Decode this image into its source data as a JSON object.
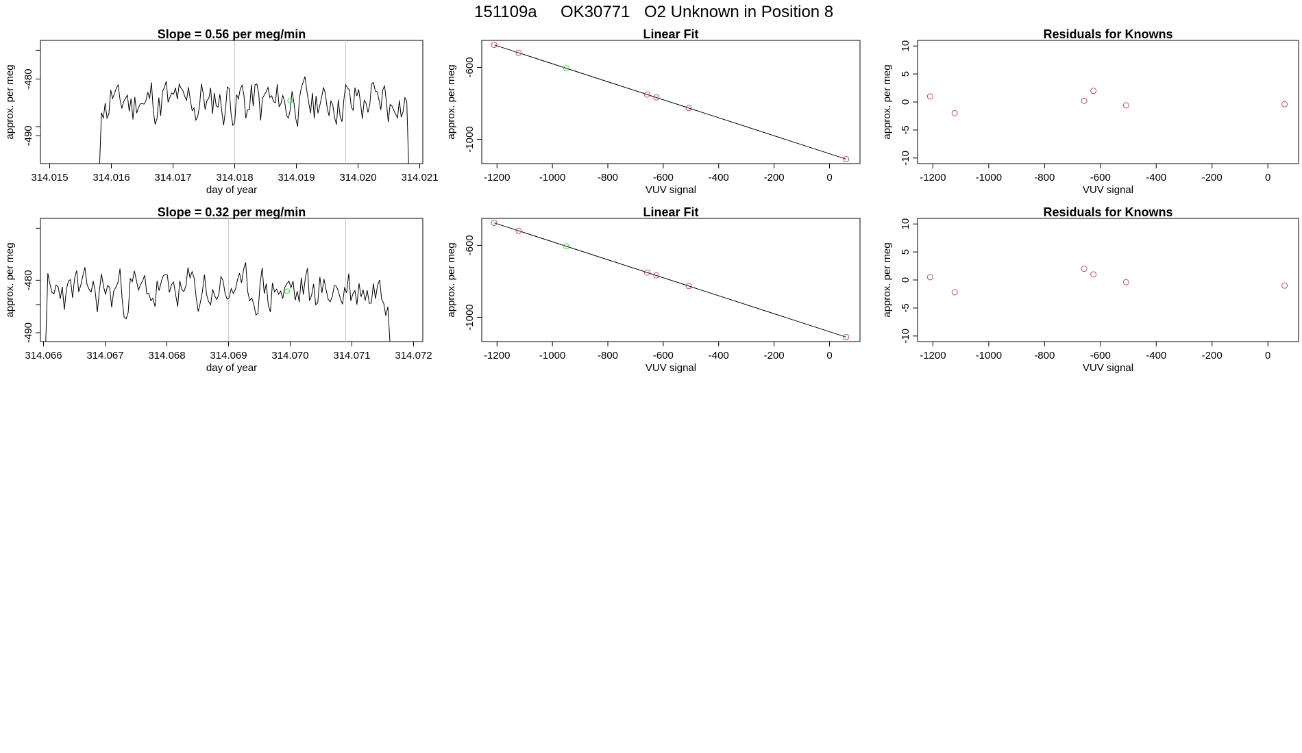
{
  "suptitle": {
    "id": "151109a",
    "sample": "OK30771",
    "desc": "O2 Unknown in Position  8"
  },
  "colors": {
    "trace": "#000000",
    "known": "#c0504d",
    "unknown": "#3cd63c",
    "grid": "#c8c8c8"
  },
  "chart_data": [
    {
      "type": "line",
      "title": "Slope =  0.56  per meg/min",
      "xlabel": "day of year",
      "ylabel": "approx. per meg",
      "xlim": [
        314.01485,
        314.02105
      ],
      "ylim": [
        -494.9,
        -473.2
      ],
      "xticks": [
        "314.015",
        "314.016",
        "314.017",
        "314.018",
        "314.019",
        "314.020",
        "314.021"
      ],
      "yticks": [
        "-480",
        "-490"
      ],
      "ytick_values": [
        -480,
        -490
      ],
      "vlines": [
        314.018,
        314.0198
      ],
      "unknown_marker": {
        "x": 314.0189,
        "y": -483.8
      },
      "trace": {
        "x_start": 314.01575,
        "x_end": 314.02085,
        "seed": 11,
        "y_mean": -484.0,
        "y_amp": 5.2
      }
    },
    {
      "type": "scatter",
      "title": "Linear Fit",
      "xlabel": "VUV signal",
      "ylabel": "approx. per meg",
      "xlim": [
        -1255,
        110
      ],
      "ylim": [
        -1135,
        -450
      ],
      "xticks": [
        "-1200",
        "-1000",
        "-800",
        "-600",
        "-400",
        "-200",
        "0"
      ],
      "ytick_labels": [
        "-600",
        "-1000"
      ],
      "ytick_values": [
        -600,
        -1000
      ],
      "fit_line": {
        "x": [
          -1210,
          60
        ],
        "y": [
          -475,
          -1110
        ]
      },
      "knowns": {
        "x": [
          -1210,
          -1122,
          -658,
          -625,
          -508,
          60
        ],
        "y": [
          -475,
          -519,
          -751,
          -767,
          -826,
          -1110
        ]
      },
      "unknown": {
        "x": -950,
        "y": -605
      }
    },
    {
      "type": "scatter",
      "title": "Residuals for Knowns",
      "xlabel": "VUV signal",
      "ylabel": "approx. per meg",
      "xlim": [
        -1255,
        110
      ],
      "ylim": [
        -11,
        11
      ],
      "xticks": [
        "-1200",
        "-1000",
        "-800",
        "-600",
        "-400",
        "-200",
        "0"
      ],
      "yticks": [
        "10",
        "5",
        "0",
        "-5",
        "-10"
      ],
      "ytick_values": [
        10,
        5,
        0,
        -5,
        -10
      ],
      "points": {
        "x": [
          -1210,
          -1122,
          -658,
          -625,
          -508,
          60
        ],
        "y": [
          1.0,
          -2.0,
          0.2,
          2.0,
          -0.6,
          -0.4
        ]
      }
    },
    {
      "type": "line",
      "title": "Slope =  0.32  per meg/min",
      "xlabel": "day of year",
      "ylabel": "approx. per meg",
      "xlim": [
        314.06595,
        314.07215
      ],
      "ylim": [
        -491.7,
        -468.2
      ],
      "xticks": [
        "314.066",
        "314.067",
        "314.068",
        "314.069",
        "314.070",
        "314.071",
        "314.072"
      ],
      "yticks": [
        "-480",
        "-490"
      ],
      "ytick_values": [
        -480,
        -490
      ],
      "vlines": [
        314.069,
        314.0709
      ],
      "unknown_marker": {
        "x": 314.06995,
        "y": -482.1
      },
      "trace": {
        "x_start": 314.06597,
        "x_end": 314.07165,
        "seed": 23,
        "y_mean": -482.0,
        "y_amp": 5.6
      }
    },
    {
      "type": "scatter",
      "title": "Linear Fit",
      "xlabel": "VUV signal",
      "ylabel": "approx. per meg",
      "xlim": [
        -1255,
        110
      ],
      "ylim": [
        -1135,
        -450
      ],
      "xticks": [
        "-1200",
        "-1000",
        "-800",
        "-600",
        "-400",
        "-200",
        "0"
      ],
      "ytick_labels": [
        "-600",
        "-1000"
      ],
      "ytick_values": [
        -600,
        -1000
      ],
      "fit_line": {
        "x": [
          -1210,
          60
        ],
        "y": [
          -475,
          -1110
        ]
      },
      "knowns": {
        "x": [
          -1210,
          -1122,
          -658,
          -625,
          -508,
          60
        ],
        "y": [
          -475,
          -519,
          -751,
          -767,
          -826,
          -1110
        ]
      },
      "unknown": {
        "x": -950,
        "y": -605
      }
    },
    {
      "type": "scatter",
      "title": "Residuals for Knowns",
      "xlabel": "VUV signal",
      "ylabel": "approx. per meg",
      "xlim": [
        -1255,
        110
      ],
      "ylim": [
        -11,
        11
      ],
      "xticks": [
        "-1200",
        "-1000",
        "-800",
        "-600",
        "-400",
        "-200",
        "0"
      ],
      "yticks": [
        "10",
        "5",
        "0",
        "-5",
        "-10"
      ],
      "ytick_values": [
        10,
        5,
        0,
        -5,
        -10
      ],
      "points": {
        "x": [
          -1210,
          -1122,
          -658,
          -625,
          -508,
          60
        ],
        "y": [
          0.5,
          -2.2,
          2.0,
          1.0,
          -0.4,
          -1.0
        ]
      }
    }
  ]
}
